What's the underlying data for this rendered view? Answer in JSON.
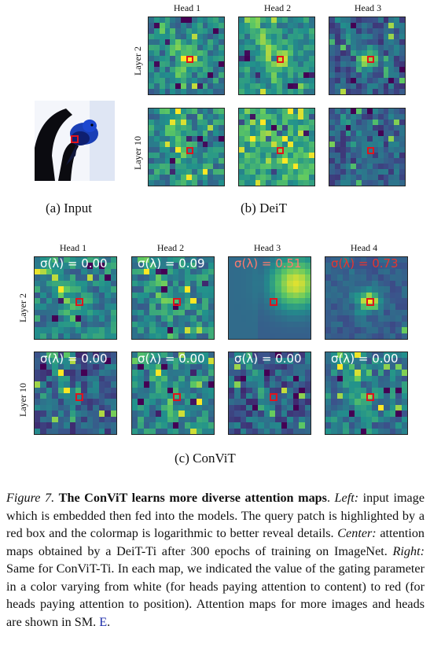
{
  "deit": {
    "heads": [
      "Head 1",
      "Head 2",
      "Head 3"
    ],
    "layers": [
      "Layer 2",
      "Layer 10"
    ],
    "subcaption": "(b) DeiT"
  },
  "input": {
    "subcaption": "(a) Input"
  },
  "convit": {
    "heads": [
      "Head 1",
      "Head 2",
      "Head 3",
      "Head 4"
    ],
    "layers": [
      "Layer 2",
      "Layer 10"
    ],
    "gates": [
      [
        "σ(λ) = 0.00",
        "σ(λ) = 0.09",
        "σ(λ) = 0.51",
        "σ(λ) = 0.73"
      ],
      [
        "σ(λ) = 0.00",
        "σ(λ) = 0.00",
        "σ(λ) = 0.00",
        "σ(λ) = 0.00"
      ]
    ],
    "gate_colors": [
      [
        "#ffffff",
        "#ffffff",
        "#ff7a6e",
        "#e8362d"
      ],
      [
        "#ffffff",
        "#ffffff",
        "#ffffff",
        "#ffffff"
      ]
    ],
    "subcaption": "(c) ConViT"
  },
  "caption": {
    "label": "Figure 7.",
    "title": "The ConViT learns more diverse attention maps",
    "title_end": ".",
    "left_label": "Left:",
    "left_text": "input image which is embedded then fed into the models. The query patch is highlighted by a red box and the colormap is logarithmic to better reveal details.",
    "center_label": "Center:",
    "center_text": "attention maps obtained by a DeiT-Ti after 300 epochs of training on ImageNet.",
    "right_label": "Right:",
    "right_text": "Same for ConViT-Ti. In each map, we indicated the value of the gating parameter in a color varying from white (for heads paying attention to content) to red (for heads paying attention to position). Attention maps for more images and heads are shown in SM.",
    "ref": "E",
    "end": "."
  },
  "colors": {
    "query_box": "#e0141c"
  }
}
